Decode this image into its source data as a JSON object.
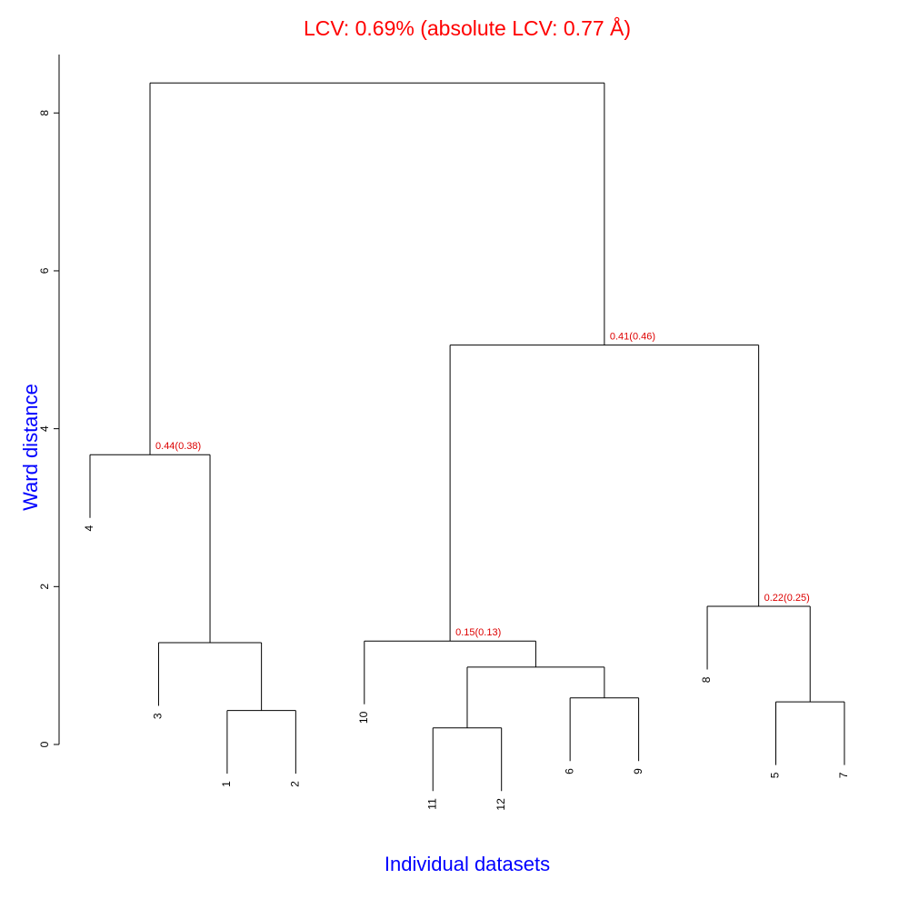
{
  "chart_data": {
    "type": "dendrogram",
    "title": "LCV: 0.69% (absolute LCV: 0.77 Å)",
    "xlabel": "Individual datasets",
    "ylabel": "Ward distance",
    "ylim": [
      0,
      8.74
    ],
    "yticks": [
      0,
      2,
      4,
      6,
      8
    ],
    "hang": 0.8,
    "leaves": [
      "4",
      "3",
      "1",
      "2",
      "10",
      "11",
      "12",
      "6",
      "9",
      "8",
      "5",
      "7"
    ],
    "merges": [
      {
        "children": [
          -3,
          -4
        ],
        "height": 0.43
      },
      {
        "children": [
          -6,
          -7
        ],
        "height": 0.21
      },
      {
        "children": [
          -11,
          -12
        ],
        "height": 0.54
      },
      {
        "children": [
          -8,
          -9
        ],
        "height": 0.59
      },
      {
        "children": [
          2,
          4
        ],
        "height": 0.98
      },
      {
        "children": [
          -2,
          1
        ],
        "height": 1.29
      },
      {
        "children": [
          -5,
          5
        ],
        "height": 1.31,
        "annotation": "0.15(0.13)"
      },
      {
        "children": [
          -10,
          3
        ],
        "height": 1.75,
        "annotation": "0.22(0.25)"
      },
      {
        "children": [
          -1,
          6
        ],
        "height": 3.67,
        "annotation": "0.44(0.38)"
      },
      {
        "children": [
          7,
          8
        ],
        "height": 5.06,
        "annotation": "0.41(0.46)"
      },
      {
        "children": [
          9,
          10
        ],
        "height": 8.38
      }
    ],
    "title_color": "#ff0000",
    "label_color": "#0000ff",
    "annotation_color": "#dd0000",
    "line_color": "#000000"
  }
}
